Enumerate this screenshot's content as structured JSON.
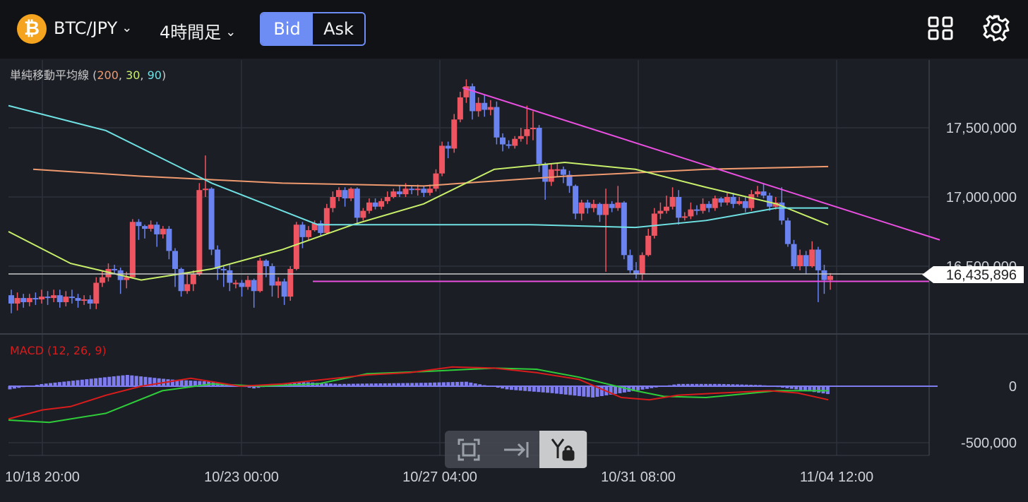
{
  "header": {
    "coin_icon": "bitcoin-icon",
    "symbol": "₿",
    "pair": "BTC/JPY",
    "timeframe": "4時間足",
    "bid_label": "Bid",
    "ask_label": "Ask",
    "active_side": "Bid",
    "icons": [
      "layout-grid-icon",
      "gear-icon"
    ]
  },
  "chart": {
    "indicator_label": "単純移動平均線",
    "sma_params": [
      {
        "value": "200",
        "color": "#ef9a6f"
      },
      {
        "value": "30",
        "color": "#c8ef6a"
      },
      {
        "value": "90",
        "color": "#6fe1e3"
      }
    ],
    "macd_label": "MACD (12, 26, 9)",
    "price_ticks": [
      "17,500,000",
      "17,000,000",
      "16,500,000"
    ],
    "current_price": "16,435,896",
    "macd_ticks": [
      "0",
      "-500,000"
    ],
    "time_labels": [
      "10/18 20:00",
      "10/23 00:00",
      "10/27 04:00",
      "10/31 08:00",
      "11/04 12:00"
    ],
    "colors": {
      "up": "#ef5561",
      "down": "#6b83ef",
      "trendline": "#e94fe0",
      "macd": "#d81c1c",
      "signal": "#2fcd3a",
      "histogram": "#7f7cf0"
    }
  },
  "controls": {
    "icons": [
      "fullscreen-icon",
      "scroll-to-latest-icon",
      "y-axis-lock-icon"
    ],
    "active": "y-axis-lock-icon"
  },
  "chart_data": {
    "type": "candlestick",
    "pair": "BTC/JPY",
    "interval": "4h",
    "x_labels": [
      "10/18 20:00",
      "10/23 00:00",
      "10/27 04:00",
      "10/31 08:00",
      "11/04 12:00"
    ],
    "ylim": [
      16100000,
      17960000
    ],
    "yticks": [
      16500000,
      17000000,
      17500000
    ],
    "current_price": 16435896,
    "candles": [
      [
        16290000,
        16230000,
        16330000,
        16160000
      ],
      [
        16230000,
        16270000,
        16310000,
        16180000
      ],
      [
        16270000,
        16240000,
        16300000,
        16200000
      ],
      [
        16240000,
        16270000,
        16300000,
        16210000
      ],
      [
        16270000,
        16260000,
        16310000,
        16220000
      ],
      [
        16260000,
        16280000,
        16330000,
        16230000
      ],
      [
        16280000,
        16270000,
        16320000,
        16220000
      ],
      [
        16270000,
        16290000,
        16330000,
        16240000
      ],
      [
        16290000,
        16240000,
        16330000,
        16200000
      ],
      [
        16240000,
        16280000,
        16320000,
        16210000
      ],
      [
        16280000,
        16270000,
        16330000,
        16230000
      ],
      [
        16270000,
        16250000,
        16300000,
        16200000
      ],
      [
        16250000,
        16260000,
        16290000,
        16220000
      ],
      [
        16260000,
        16230000,
        16290000,
        16190000
      ],
      [
        16230000,
        16380000,
        16420000,
        16190000
      ],
      [
        16380000,
        16420000,
        16470000,
        16350000
      ],
      [
        16420000,
        16480000,
        16520000,
        16390000
      ],
      [
        16480000,
        16470000,
        16510000,
        16440000
      ],
      [
        16470000,
        16400000,
        16490000,
        16300000
      ],
      [
        16400000,
        16420000,
        16460000,
        16340000
      ],
      [
        16420000,
        16820000,
        16840000,
        16410000
      ],
      [
        16820000,
        16790000,
        16840000,
        16690000
      ],
      [
        16790000,
        16770000,
        16800000,
        16700000
      ],
      [
        16770000,
        16800000,
        16830000,
        16750000
      ],
      [
        16800000,
        16730000,
        16820000,
        16640000
      ],
      [
        16730000,
        16770000,
        16790000,
        16700000
      ],
      [
        16770000,
        16610000,
        16790000,
        16550000
      ],
      [
        16610000,
        16480000,
        16630000,
        16350000
      ],
      [
        16480000,
        16320000,
        16490000,
        16280000
      ],
      [
        16320000,
        16370000,
        16450000,
        16300000
      ],
      [
        16370000,
        16440000,
        16470000,
        16320000
      ],
      [
        16440000,
        17050000,
        17100000,
        16430000
      ],
      [
        17050000,
        17060000,
        17300000,
        17000000
      ],
      [
        17060000,
        16620000,
        17070000,
        16580000
      ],
      [
        16620000,
        16480000,
        16650000,
        16400000
      ],
      [
        16480000,
        16470000,
        16500000,
        16350000
      ],
      [
        16470000,
        16380000,
        16510000,
        16320000
      ],
      [
        16380000,
        16380000,
        16400000,
        16340000
      ],
      [
        16380000,
        16350000,
        16400000,
        16280000
      ],
      [
        16350000,
        16400000,
        16430000,
        16330000
      ],
      [
        16400000,
        16320000,
        16410000,
        16200000
      ],
      [
        16320000,
        16540000,
        16560000,
        16310000
      ],
      [
        16540000,
        16500000,
        16550000,
        16420000
      ],
      [
        16500000,
        16360000,
        16520000,
        16280000
      ],
      [
        16360000,
        16390000,
        16420000,
        16270000
      ],
      [
        16390000,
        16280000,
        16410000,
        16220000
      ],
      [
        16280000,
        16480000,
        16500000,
        16250000
      ],
      [
        16480000,
        16800000,
        16820000,
        16470000
      ],
      [
        16800000,
        16710000,
        16820000,
        16630000
      ],
      [
        16710000,
        16760000,
        16790000,
        16690000
      ],
      [
        16760000,
        16810000,
        16830000,
        16750000
      ],
      [
        16810000,
        16740000,
        16830000,
        16720000
      ],
      [
        16740000,
        16920000,
        16950000,
        16730000
      ],
      [
        16920000,
        17000000,
        17040000,
        16890000
      ],
      [
        17000000,
        17050000,
        17070000,
        16970000
      ],
      [
        17050000,
        16990000,
        17070000,
        16930000
      ],
      [
        16990000,
        17060000,
        17070000,
        16970000
      ],
      [
        17060000,
        16850000,
        17070000,
        16800000
      ],
      [
        16850000,
        16900000,
        16920000,
        16830000
      ],
      [
        16900000,
        16960000,
        16990000,
        16880000
      ],
      [
        16960000,
        16930000,
        16990000,
        16910000
      ],
      [
        16930000,
        16970000,
        16990000,
        16910000
      ],
      [
        16970000,
        17000000,
        17040000,
        16950000
      ],
      [
        17000000,
        17040000,
        17060000,
        16990000
      ],
      [
        17040000,
        17020000,
        17080000,
        17000000
      ],
      [
        17020000,
        17060000,
        17100000,
        17000000
      ],
      [
        17060000,
        17050000,
        17080000,
        17020000
      ],
      [
        17050000,
        17060000,
        17090000,
        17010000
      ],
      [
        17060000,
        17030000,
        17080000,
        17000000
      ],
      [
        17030000,
        17060000,
        17090000,
        17010000
      ],
      [
        17060000,
        17170000,
        17200000,
        17040000
      ],
      [
        17170000,
        17370000,
        17400000,
        17150000
      ],
      [
        17370000,
        17350000,
        17400000,
        17280000
      ],
      [
        17350000,
        17560000,
        17600000,
        17320000
      ],
      [
        17560000,
        17720000,
        17760000,
        17540000
      ],
      [
        17720000,
        17800000,
        17850000,
        17680000
      ],
      [
        17800000,
        17620000,
        17820000,
        17560000
      ],
      [
        17620000,
        17680000,
        17720000,
        17580000
      ],
      [
        17680000,
        17630000,
        17740000,
        17580000
      ],
      [
        17630000,
        17650000,
        17700000,
        17590000
      ],
      [
        17650000,
        17430000,
        17690000,
        17380000
      ],
      [
        17430000,
        17380000,
        17460000,
        17330000
      ],
      [
        17380000,
        17370000,
        17410000,
        17350000
      ],
      [
        17370000,
        17420000,
        17440000,
        17350000
      ],
      [
        17420000,
        17440000,
        17500000,
        17400000
      ],
      [
        17440000,
        17490000,
        17660000,
        17380000
      ],
      [
        17490000,
        17500000,
        17620000,
        17410000
      ],
      [
        17500000,
        17240000,
        17520000,
        17180000
      ],
      [
        17240000,
        17110000,
        17250000,
        16980000
      ],
      [
        17110000,
        17200000,
        17240000,
        17080000
      ],
      [
        17200000,
        17200000,
        17240000,
        17150000
      ],
      [
        17200000,
        17160000,
        17220000,
        17100000
      ],
      [
        17160000,
        17080000,
        17190000,
        17030000
      ],
      [
        17080000,
        16880000,
        17090000,
        16840000
      ],
      [
        16880000,
        16960000,
        16980000,
        16830000
      ],
      [
        16960000,
        16920000,
        16980000,
        16880000
      ],
      [
        16920000,
        16950000,
        16980000,
        16890000
      ],
      [
        16950000,
        16870000,
        16960000,
        16820000
      ],
      [
        16870000,
        16950000,
        17060000,
        16460000
      ],
      [
        16950000,
        16920000,
        16970000,
        16890000
      ],
      [
        16920000,
        16960000,
        17080000,
        16900000
      ],
      [
        16960000,
        16580000,
        16970000,
        16550000
      ],
      [
        16580000,
        16470000,
        16620000,
        16450000
      ],
      [
        16470000,
        16440000,
        16530000,
        16410000
      ],
      [
        16440000,
        16580000,
        16600000,
        16400000
      ],
      [
        16580000,
        16720000,
        16770000,
        16570000
      ],
      [
        16720000,
        16880000,
        16920000,
        16700000
      ],
      [
        16880000,
        16900000,
        16960000,
        16840000
      ],
      [
        16900000,
        16930000,
        17010000,
        16880000
      ],
      [
        16930000,
        17000000,
        17070000,
        16910000
      ],
      [
        17000000,
        16850000,
        17050000,
        16800000
      ],
      [
        16850000,
        16860000,
        16890000,
        16830000
      ],
      [
        16860000,
        16910000,
        16960000,
        16840000
      ],
      [
        16910000,
        16900000,
        16940000,
        16870000
      ],
      [
        16900000,
        16950000,
        16990000,
        16880000
      ],
      [
        16950000,
        16920000,
        16970000,
        16890000
      ],
      [
        16920000,
        16990000,
        17010000,
        16900000
      ],
      [
        16990000,
        16960000,
        17000000,
        16930000
      ],
      [
        16960000,
        17000000,
        17030000,
        16940000
      ],
      [
        17000000,
        16950000,
        17030000,
        16920000
      ],
      [
        16950000,
        16970000,
        17000000,
        16940000
      ],
      [
        16970000,
        16920000,
        17000000,
        16890000
      ],
      [
        16920000,
        17020000,
        17050000,
        16900000
      ],
      [
        17020000,
        17040000,
        17080000,
        17000000
      ],
      [
        17040000,
        17010000,
        17100000,
        16990000
      ],
      [
        17010000,
        16930000,
        17030000,
        16900000
      ],
      [
        16930000,
        16960000,
        17000000,
        16910000
      ],
      [
        16960000,
        16830000,
        17070000,
        16800000
      ],
      [
        16830000,
        16660000,
        16850000,
        16640000
      ],
      [
        16660000,
        16500000,
        16690000,
        16480000
      ],
      [
        16500000,
        16580000,
        16620000,
        16470000
      ],
      [
        16580000,
        16500000,
        16610000,
        16440000
      ],
      [
        16500000,
        16620000,
        16680000,
        16490000
      ],
      [
        16620000,
        16470000,
        16640000,
        16240000
      ],
      [
        16470000,
        16400000,
        16510000,
        16300000
      ],
      [
        16400000,
        16430000,
        16450000,
        16330000
      ]
    ],
    "sma_200": [
      [
        47,
        17200000
      ],
      [
        200,
        17150000
      ],
      [
        400,
        17100000
      ],
      [
        600,
        17080000
      ],
      [
        800,
        17150000
      ],
      [
        1000,
        17200000
      ],
      [
        1173,
        17220000
      ]
    ],
    "sma_30": [
      [
        12,
        16750000
      ],
      [
        100,
        16520000
      ],
      [
        200,
        16400000
      ],
      [
        300,
        16480000
      ],
      [
        400,
        16620000
      ],
      [
        500,
        16800000
      ],
      [
        600,
        16950000
      ],
      [
        700,
        17200000
      ],
      [
        800,
        17250000
      ],
      [
        900,
        17200000
      ],
      [
        1000,
        17070000
      ],
      [
        1100,
        16950000
      ],
      [
        1173,
        16800000
      ]
    ],
    "sma_90": [
      [
        12,
        17660000
      ],
      [
        150,
        17480000
      ],
      [
        300,
        17100000
      ],
      [
        450,
        16800000
      ],
      [
        600,
        16800000
      ],
      [
        750,
        16800000
      ],
      [
        900,
        16780000
      ],
      [
        1000,
        16830000
      ],
      [
        1100,
        16920000
      ],
      [
        1173,
        16920000
      ]
    ],
    "trendline_upper": [
      [
        655,
        17790000
      ],
      [
        1331,
        16690000
      ]
    ],
    "trendline_lower": [
      [
        443,
        16390000
      ],
      [
        1316,
        16390000
      ]
    ],
    "macd": {
      "ylim": [
        -500000,
        500000
      ],
      "macd_line": [
        [
          12,
          -290000
        ],
        [
          60,
          -210000
        ],
        [
          100,
          -180000
        ],
        [
          150,
          -80000
        ],
        [
          200,
          0
        ],
        [
          270,
          70000
        ],
        [
          340,
          0
        ],
        [
          400,
          20000
        ],
        [
          460,
          60000
        ],
        [
          520,
          100000
        ],
        [
          580,
          120000
        ],
        [
          640,
          170000
        ],
        [
          700,
          160000
        ],
        [
          760,
          120000
        ],
        [
          820,
          60000
        ],
        [
          880,
          -100000
        ],
        [
          920,
          -120000
        ],
        [
          960,
          -80000
        ],
        [
          1020,
          -60000
        ],
        [
          1090,
          -40000
        ],
        [
          1130,
          -60000
        ],
        [
          1173,
          -120000
        ]
      ],
      "signal_line": [
        [
          12,
          -300000
        ],
        [
          70,
          -320000
        ],
        [
          150,
          -240000
        ],
        [
          230,
          -40000
        ],
        [
          300,
          20000
        ],
        [
          370,
          0
        ],
        [
          450,
          20000
        ],
        [
          520,
          110000
        ],
        [
          600,
          130000
        ],
        [
          700,
          160000
        ],
        [
          760,
          150000
        ],
        [
          820,
          80000
        ],
        [
          900,
          -40000
        ],
        [
          940,
          -90000
        ],
        [
          1000,
          -100000
        ],
        [
          1100,
          -40000
        ],
        [
          1173,
          -40000
        ]
      ],
      "histogram": [
        [
          12,
          -30000
        ],
        [
          60,
          20000
        ],
        [
          120,
          60000
        ],
        [
          180,
          100000
        ],
        [
          240,
          60000
        ],
        [
          300,
          40000
        ],
        [
          360,
          -20000
        ],
        [
          420,
          40000
        ],
        [
          480,
          20000
        ],
        [
          600,
          30000
        ],
        [
          660,
          40000
        ],
        [
          720,
          -30000
        ],
        [
          780,
          -60000
        ],
        [
          840,
          -100000
        ],
        [
          900,
          -40000
        ],
        [
          960,
          20000
        ],
        [
          1020,
          20000
        ],
        [
          1080,
          10000
        ],
        [
          1130,
          -30000
        ],
        [
          1173,
          -70000
        ]
      ]
    }
  }
}
